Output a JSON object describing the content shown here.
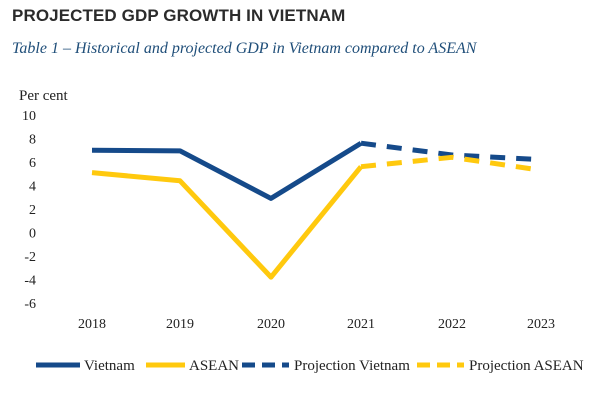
{
  "heading": "PROJECTED GDP GROWTH IN VIETNAM",
  "chart_data": {
    "type": "line",
    "title": "Table 1 – Historical and projected GDP in Vietnam compared to ASEAN",
    "ylabel": "Per cent",
    "xlabel": "",
    "ylim": [
      -6,
      10
    ],
    "yticks": [
      10,
      8,
      6,
      4,
      2,
      0,
      -2,
      -4,
      -6
    ],
    "categories": [
      "2018",
      "2019",
      "2020",
      "2021",
      "2022",
      "2023"
    ],
    "grid": false,
    "legend_position": "bottom",
    "series": [
      {
        "name": "Vietnam",
        "color": "#154a8a",
        "style": "solid",
        "values": [
          7.0,
          6.95,
          2.9,
          7.6,
          null,
          null
        ]
      },
      {
        "name": "ASEAN",
        "color": "#ffc90e",
        "style": "solid",
        "values": [
          5.1,
          4.4,
          -3.8,
          5.6,
          null,
          null
        ]
      },
      {
        "name": "Projection Vietnam",
        "color": "#154a8a",
        "style": "dashed",
        "values": [
          null,
          null,
          null,
          7.6,
          6.6,
          6.2
        ]
      },
      {
        "name": "Projection ASEAN",
        "color": "#ffc90e",
        "style": "dashed",
        "values": [
          null,
          null,
          null,
          5.6,
          6.4,
          5.3
        ]
      }
    ]
  }
}
